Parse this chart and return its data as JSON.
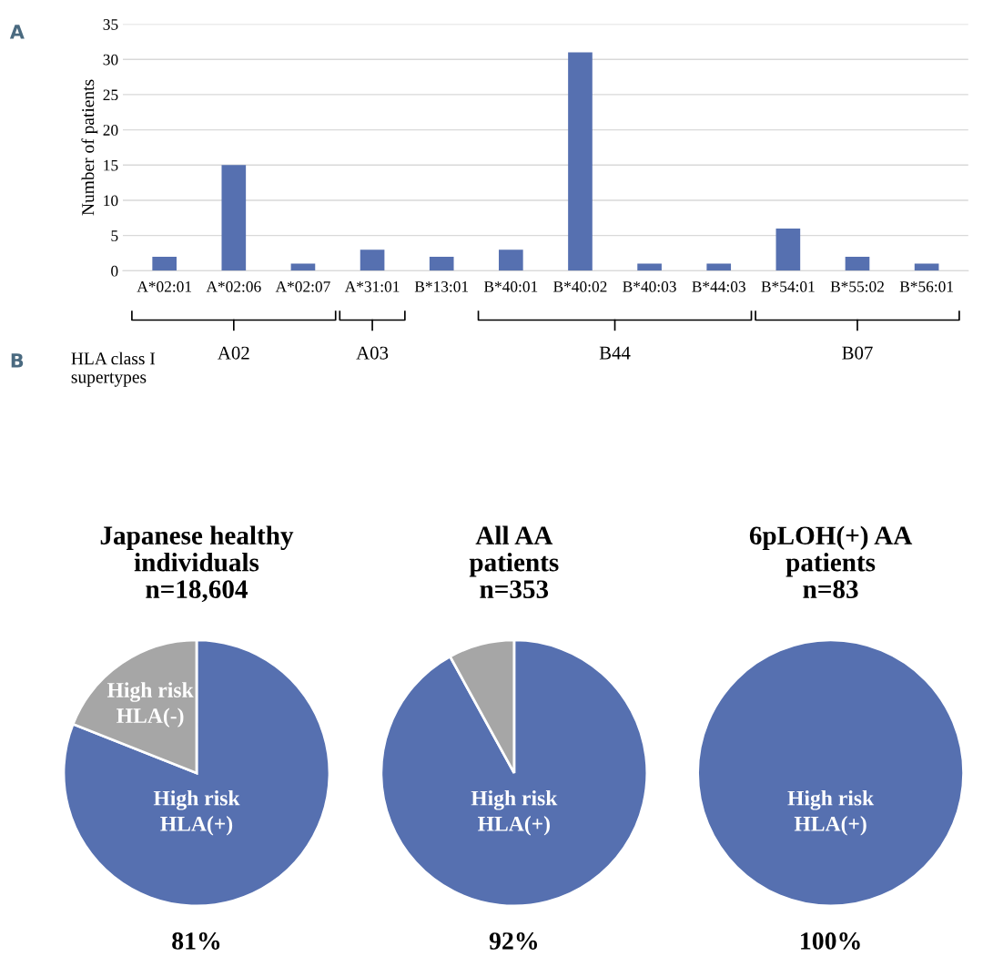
{
  "chart_data": [
    {
      "type": "bar",
      "ylabel": "Number of patients",
      "categories": [
        "A*02:01",
        "A*02:06",
        "A*02:07",
        "A*31:01",
        "B*13:01",
        "B*40:01",
        "B*40:02",
        "B*40:03",
        "B*44:03",
        "B*54:01",
        "B*55:02",
        "B*56:01"
      ],
      "values": [
        2,
        15,
        1,
        3,
        2,
        3,
        31,
        1,
        1,
        6,
        2,
        1
      ],
      "color": "#5670b0",
      "ylim": [
        0,
        35
      ],
      "yticks": [
        0,
        5,
        10,
        15,
        20,
        25,
        30,
        35
      ],
      "grid": "y",
      "legend": false,
      "annotations": [
        "A",
        "HLA class I\nsupertypes",
        "A02",
        "A03",
        "B44",
        "B07"
      ]
    },
    {
      "type": "pie",
      "title": "Japanese healthy\nindividuals\nn=18,604",
      "categories": [
        "High risk\nHLA(+)",
        "High risk\nHLA(-)"
      ],
      "values": [
        81,
        19
      ],
      "colors": [
        "#5670b0",
        "#a6a6a6"
      ],
      "value_labels": [
        "81%",
        null
      ],
      "legend": false,
      "annotations": [
        "B"
      ]
    },
    {
      "type": "pie",
      "title": "All AA\npatients\nn=353",
      "categories": [
        "High risk\nHLA(+)",
        null
      ],
      "values": [
        92,
        8
      ],
      "colors": [
        "#5670b0",
        "#a6a6a6"
      ],
      "value_labels": [
        "92%",
        null
      ],
      "legend": false
    },
    {
      "type": "pie",
      "title": "6pLOH(+) AA\npatients\nn=83",
      "categories": [
        "High risk\nHLA(+)"
      ],
      "values": [
        100
      ],
      "colors": [
        "#5670b0"
      ],
      "value_labels": [
        "100%"
      ],
      "legend": false
    }
  ]
}
